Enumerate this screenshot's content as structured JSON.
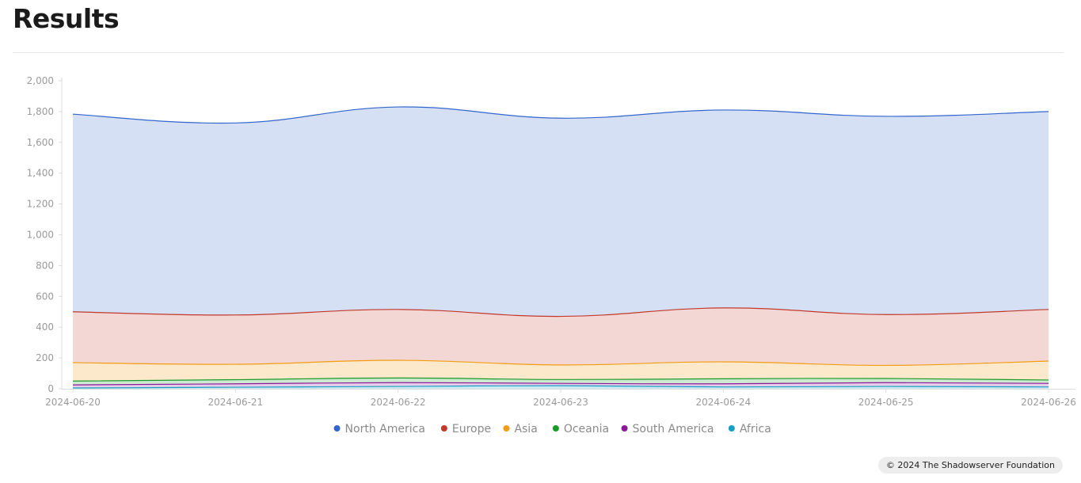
{
  "page": {
    "title": "Results",
    "footer": "© 2024 The Shadowserver Foundation"
  },
  "chart_data": {
    "type": "area",
    "stacked": true,
    "title": "",
    "xlabel": "",
    "ylabel": "",
    "x": [
      "2024-06-20",
      "2024-06-21",
      "2024-06-22",
      "2024-06-23",
      "2024-06-24",
      "2024-06-25",
      "2024-06-26"
    ],
    "ylim": [
      0,
      2000
    ],
    "yticks": [
      0,
      200,
      400,
      600,
      800,
      1000,
      1200,
      1400,
      1600,
      1800,
      2000
    ],
    "ytick_labels": [
      "0",
      "200",
      "400",
      "600",
      "800",
      "1,000",
      "1,200",
      "1,400",
      "1,600",
      "1,800",
      "2,000"
    ],
    "grid": false,
    "legend_position": "bottom-center",
    "series": [
      {
        "name": "Africa",
        "color": "#1a9fc4",
        "values": [
          5,
          10,
          15,
          20,
          12,
          15,
          12
        ]
      },
      {
        "name": "South America",
        "color": "#8b1a9a",
        "values": [
          20,
          22,
          25,
          15,
          20,
          25,
          23
        ]
      },
      {
        "name": "Oceania",
        "color": "#1b9a2a",
        "values": [
          25,
          27,
          30,
          25,
          33,
          27,
          22
        ]
      },
      {
        "name": "Asia",
        "color": "#f39c12",
        "values": [
          120,
          100,
          115,
          95,
          110,
          85,
          123
        ]
      },
      {
        "name": "Europe",
        "color": "#c0392b",
        "values": [
          330,
          320,
          330,
          315,
          350,
          330,
          335
        ]
      },
      {
        "name": "North America",
        "color": "#3366cc",
        "values": [
          1283,
          1247,
          1315,
          1287,
          1285,
          1287,
          1285
        ]
      }
    ],
    "legend_order": [
      "North America",
      "Europe",
      "Asia",
      "Oceania",
      "South America",
      "Africa"
    ]
  }
}
